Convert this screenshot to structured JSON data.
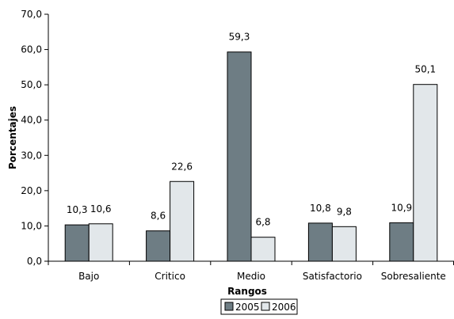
{
  "chart_data": {
    "type": "bar",
    "xlabel": "Rangos",
    "ylabel": "Porcentajes",
    "categories": [
      "Bajo",
      "Critico",
      "Medio",
      "Satisfactorio",
      "Sobresaliente"
    ],
    "series": [
      {
        "name": "2005",
        "values": [
          10.3,
          8.6,
          59.3,
          10.8,
          10.9
        ],
        "labels": [
          "10,3",
          "8,6",
          "59,3",
          "10,8",
          "10,9"
        ],
        "color": "#6E7D84"
      },
      {
        "name": "2006",
        "values": [
          10.6,
          22.6,
          6.8,
          9.8,
          50.1
        ],
        "labels": [
          "10,6",
          "22,6",
          "6,8",
          "9,8",
          "50,1"
        ],
        "color": "#E2E7EA"
      }
    ],
    "ylim": [
      0,
      70
    ],
    "yticks": [
      "0,0",
      "10,0",
      "20,0",
      "30,0",
      "40,0",
      "50,0",
      "60,0",
      "70,0"
    ],
    "grid": false,
    "legend_position": "bottom"
  }
}
